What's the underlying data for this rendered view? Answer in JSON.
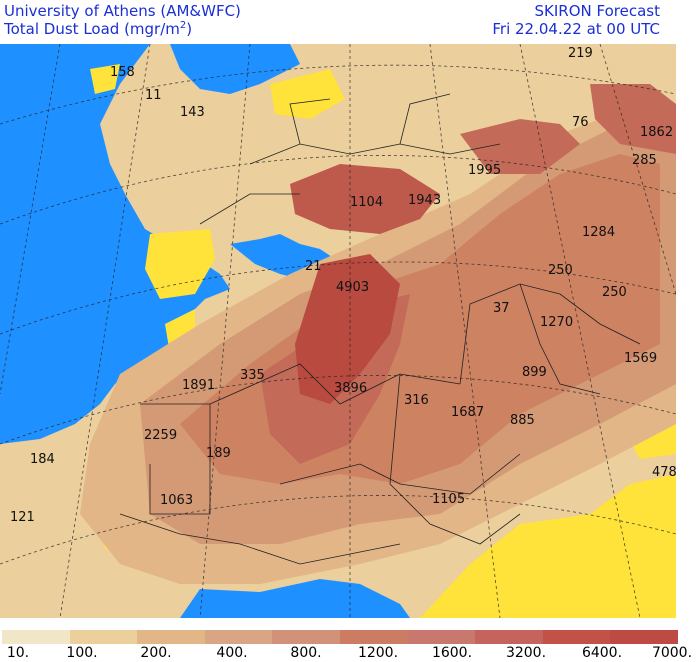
{
  "header": {
    "institution": "University of Athens (AM&WFC)",
    "field_label": "Total Dust Load (mgr/m",
    "field_sup": "2",
    "field_close": ")",
    "model": "SKIRON Forecast",
    "valid_time": "Fri 22.04.22 at 00 UTC"
  },
  "colors": {
    "sea": "#1e90ff",
    "zero": "#ffe23a",
    "c10": "#f2e6c8",
    "c100": "#ebcf9c",
    "c200": "#e2b687",
    "c400": "#d49a75",
    "c800": "#cd8262",
    "c1200": "#c36b58",
    "c1600": "#bd5a4c",
    "c3200": "#b84a40"
  },
  "map_values": [
    {
      "label": "158"
    },
    {
      "label": "11"
    },
    {
      "label": "143"
    },
    {
      "label": "219"
    },
    {
      "label": "76"
    },
    {
      "label": "1862"
    },
    {
      "label": "285"
    },
    {
      "label": "1995"
    },
    {
      "label": "1104"
    },
    {
      "label": "1943"
    },
    {
      "label": "1284"
    },
    {
      "label": "21"
    },
    {
      "label": "4903"
    },
    {
      "label": "250"
    },
    {
      "label": "250"
    },
    {
      "label": "37"
    },
    {
      "label": "1270"
    },
    {
      "label": "1569"
    },
    {
      "label": "1891"
    },
    {
      "label": "335"
    },
    {
      "label": "3896"
    },
    {
      "label": "899"
    },
    {
      "label": "316"
    },
    {
      "label": "1687"
    },
    {
      "label": "885"
    },
    {
      "label": "2259"
    },
    {
      "label": "189"
    },
    {
      "label": "184"
    },
    {
      "label": "478"
    },
    {
      "label": "1105"
    },
    {
      "label": "1063"
    },
    {
      "label": "121"
    }
  ],
  "legend": {
    "colors": [
      "#f2e6c8",
      "#ebcf9c",
      "#e2b687",
      "#d8a585",
      "#d09278",
      "#cc7c62",
      "#c97870",
      "#c4645c",
      "#c25248",
      "#be4a44"
    ],
    "labels": [
      "10.",
      "100.",
      "200.",
      "400.",
      "800.",
      "1200.",
      "1600.",
      "3200.",
      "6400.",
      "7000."
    ]
  }
}
